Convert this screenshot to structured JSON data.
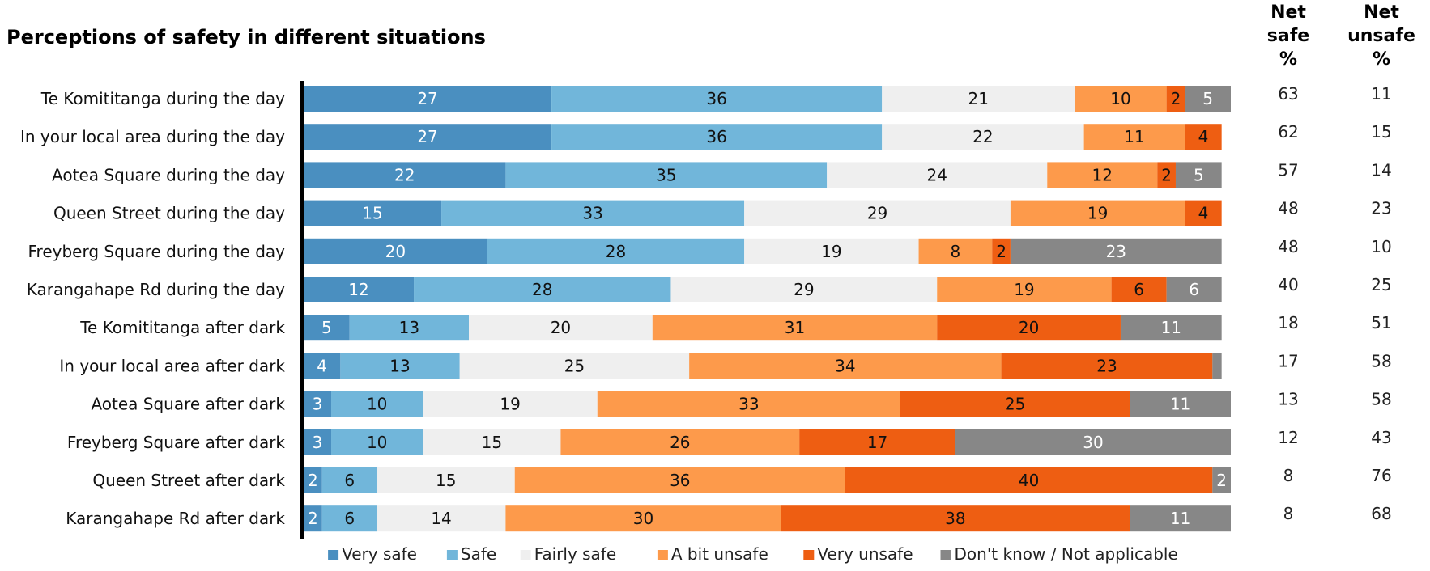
{
  "chart_data": {
    "type": "bar",
    "stacked": true,
    "orientation": "horizontal",
    "title": "Perceptions of safety in different situations",
    "categories": [
      "Te Komititanga during the day",
      "In your local area during the day",
      "Aotea Square during the day",
      "Queen Street during the day",
      "Freyberg Square during the day",
      "Karangahape Rd during the day",
      "Te Komititanga after dark",
      "In your local area after dark",
      "Aotea Square after dark",
      "Freyberg Square after dark",
      "Queen Street after dark",
      "Karangahape Rd after dark"
    ],
    "series": [
      {
        "name": "Very safe",
        "color": "#4a8fc0",
        "label_color": "#ffffff",
        "values": [
          27,
          27,
          22,
          15,
          20,
          12,
          5,
          4,
          3,
          3,
          2,
          2
        ]
      },
      {
        "name": "Safe",
        "color": "#71b6da",
        "label_color": "#111111",
        "values": [
          36,
          36,
          35,
          33,
          28,
          28,
          13,
          13,
          10,
          10,
          6,
          6
        ]
      },
      {
        "name": "Fairly safe",
        "color": "#efefef",
        "label_color": "#111111",
        "values": [
          21,
          22,
          24,
          29,
          19,
          29,
          20,
          25,
          19,
          15,
          15,
          14
        ]
      },
      {
        "name": "A bit unsafe",
        "color": "#fd9a4b",
        "label_color": "#111111",
        "values": [
          10,
          11,
          12,
          19,
          8,
          19,
          31,
          34,
          33,
          26,
          36,
          30
        ]
      },
      {
        "name": "Very unsafe",
        "color": "#ee5e12",
        "label_color": "#111111",
        "values": [
          2,
          4,
          2,
          4,
          2,
          6,
          20,
          23,
          25,
          17,
          40,
          38
        ]
      },
      {
        "name": "Don't know / Not applicable",
        "color": "#878787",
        "label_color": "#ffffff",
        "values": [
          5,
          0,
          5,
          0,
          23,
          6,
          11,
          1,
          11,
          30,
          2,
          11
        ],
        "shown_labels": [
          "5",
          "",
          "5",
          "",
          "23",
          "6",
          "11",
          "",
          "11",
          "30",
          "2",
          "11"
        ]
      }
    ],
    "xlim": [
      0,
      101
    ],
    "grid": false,
    "legend_position": "bottom",
    "extra_columns": [
      {
        "header": [
          "Net",
          "safe",
          "%"
        ],
        "values": [
          63,
          62,
          57,
          48,
          48,
          40,
          18,
          17,
          13,
          12,
          8,
          8
        ]
      },
      {
        "header": [
          "Net",
          "unsafe",
          "%"
        ],
        "values": [
          11,
          15,
          14,
          23,
          10,
          25,
          51,
          58,
          58,
          43,
          76,
          68
        ]
      }
    ]
  }
}
